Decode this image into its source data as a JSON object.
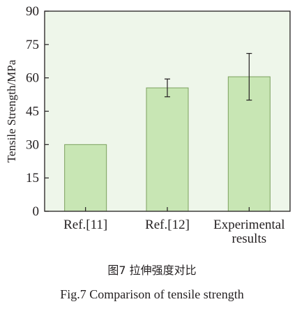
{
  "chart_data": {
    "type": "bar",
    "ylabel": "Tensile Strength/MPa",
    "xlabel": "",
    "ylim": [
      0,
      90
    ],
    "yticks": [
      0,
      15,
      30,
      45,
      60,
      75,
      90
    ],
    "categories": [
      [
        "Ref.[11]"
      ],
      [
        "Ref.[12]"
      ],
      [
        "Experimental",
        "results"
      ]
    ],
    "values": [
      30,
      55.5,
      60.5
    ],
    "error_low": [
      null,
      51.5,
      50
    ],
    "error_high": [
      null,
      59.5,
      71
    ],
    "colors": {
      "plot_bg": "#eef6ea",
      "bar_fill": "#c8e6b4",
      "bar_stroke": "#7ca05e",
      "axis": "#231f20"
    }
  },
  "caption": {
    "cn": "图7  拉伸强度对比",
    "en": "Fig.7  Comparison of tensile strength"
  }
}
